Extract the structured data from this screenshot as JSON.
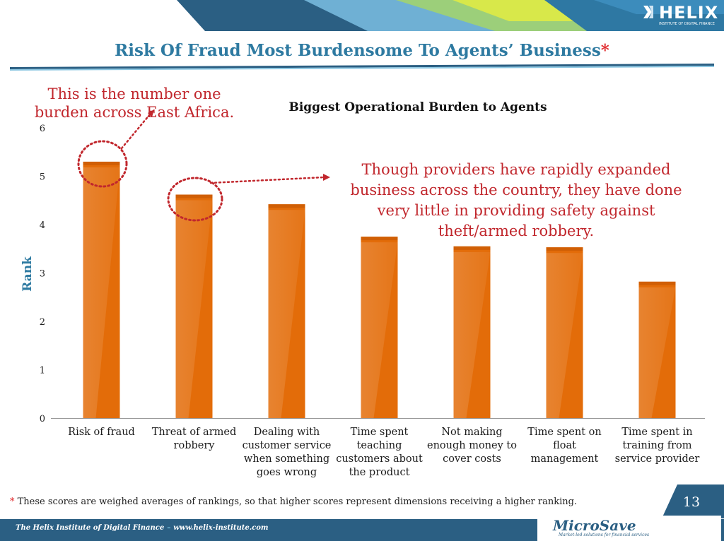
{
  "header": {
    "logo_text": "HELIX",
    "logo_subtext": "INSTITUTE OF DIGITAL FINANCE",
    "title": "Risk Of Fraud Most Burdensome To Agents’ Business",
    "title_marker": "*"
  },
  "chart_data": {
    "type": "bar",
    "title": "Biggest Operational Burden to Agents",
    "ylabel": "Rank",
    "xlabel": "",
    "ylim": [
      0,
      6
    ],
    "yticks": [
      "0",
      "1",
      "2",
      "3",
      "4",
      "5",
      "6"
    ],
    "grid": false,
    "bar_color": "#e36c09",
    "categories": [
      [
        "Risk of fraud"
      ],
      [
        "Threat of armed",
        "robbery"
      ],
      [
        "Dealing with",
        "customer service",
        "when something",
        "goes wrong"
      ],
      [
        "Time spent",
        "teaching",
        "customers about",
        "the product"
      ],
      [
        "Not making",
        "enough money to",
        "cover costs"
      ],
      [
        "Time spent on",
        "float",
        "management"
      ],
      [
        "Time spent in",
        "training from",
        "service provider"
      ]
    ],
    "values": [
      5.3,
      4.62,
      4.42,
      3.75,
      3.55,
      3.53,
      2.82
    ]
  },
  "annotations": {
    "callout1_lines": [
      "This is the number one",
      "burden across East Africa."
    ],
    "callout2_lines": [
      "Though providers have rapidly expanded",
      "business across the country, they have done",
      "very little in providing safety against",
      "theft/armed robbery."
    ],
    "accent_color": "#c1272d"
  },
  "footnote": {
    "marker": "*",
    "text": " These scores are weighed averages of rankings, so that higher scores represent  dimensions receiving a higher ranking."
  },
  "page_number": "13",
  "footer": {
    "left_text": "The Helix Institute of Digital Finance",
    "separator": "–",
    "url": "www.helix-institute.com",
    "brand_name": "MicroSave",
    "brand_tagline": "Market-led solutions for financial services"
  }
}
